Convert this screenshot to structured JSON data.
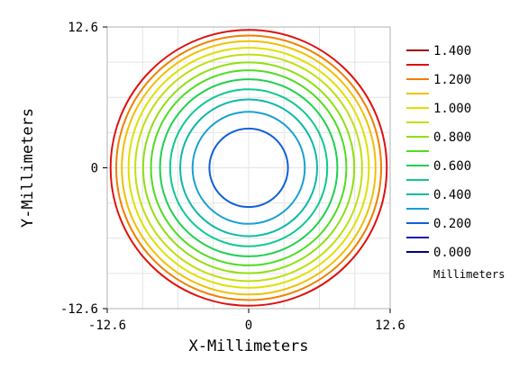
{
  "chart_data": {
    "type": "contour",
    "title": "",
    "xlabel": "X-Millimeters",
    "ylabel": "Y-Millimeters",
    "xlim": [
      -12.6,
      12.6
    ],
    "ylim": [
      -12.6,
      12.6
    ],
    "x_ticks": [
      {
        "value": -12.6,
        "label": "-12.6"
      },
      {
        "value": 0,
        "label": "0"
      },
      {
        "value": 12.6,
        "label": "12.6"
      }
    ],
    "y_ticks": [
      {
        "value": 12.6,
        "label": "12.6"
      },
      {
        "value": 0,
        "label": "0"
      },
      {
        "value": -12.6,
        "label": "-12.6"
      }
    ],
    "grid": true,
    "contour_radii_mm": [
      3.5,
      5.0,
      6.1,
      7.0,
      7.9,
      8.7,
      9.4,
      10.1,
      10.7,
      11.3,
      11.8,
      12.3
    ],
    "contour_colors": [
      "#1060d8",
      "#18a0d0",
      "#10b8a8",
      "#10c890",
      "#20d050",
      "#50dc20",
      "#90e010",
      "#c0e010",
      "#e0e000",
      "#f0c000",
      "#f08000",
      "#e01010"
    ],
    "legend": {
      "position": "right",
      "unit_label": "Millimeters",
      "labels": [
        "1.400",
        "1.200",
        "1.000",
        "0.800",
        "0.600",
        "0.400",
        "0.200",
        "0.000"
      ],
      "colors": [
        "#a00000",
        "#e01010",
        "#f08000",
        "#f0c000",
        "#e0e000",
        "#c0e010",
        "#90e010",
        "#50dc20",
        "#20d050",
        "#10c890",
        "#10b8a8",
        "#18a0d0",
        "#1060d8",
        "#1818b0",
        "#000080"
      ]
    }
  }
}
